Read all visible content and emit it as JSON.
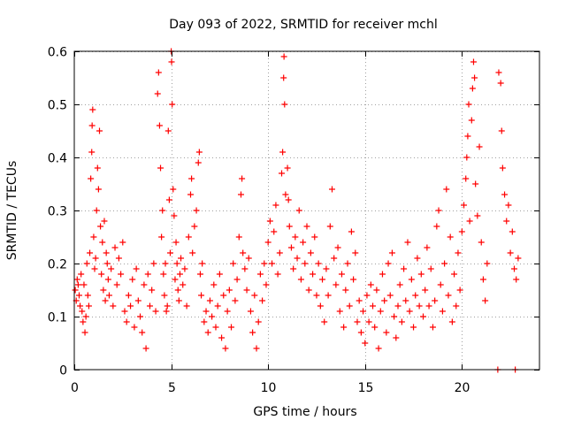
{
  "chart_data": {
    "type": "scatter",
    "title": "Day 093 of 2022, SRMTID for receiver mchl",
    "xlabel": "GPS time / hours",
    "ylabel": "SRMTID / TECUs",
    "xlim": [
      0,
      24
    ],
    "ylim": [
      0,
      0.6
    ],
    "x_ticks": [
      0,
      5,
      10,
      15,
      20
    ],
    "x_tick_labels": [
      "0",
      "5",
      "10",
      "15",
      "20"
    ],
    "y_ticks": [
      0,
      0.1,
      0.2,
      0.3,
      0.4,
      0.5,
      0.6
    ],
    "y_tick_labels": [
      "0",
      "0.1",
      "0.2",
      "0.3",
      "0.4",
      "0.5",
      "0.6"
    ],
    "grid": true,
    "marker": "plus",
    "series": [
      {
        "name": "SRMTID",
        "color": "#ff0000",
        "points": [
          [
            0.05,
            0.15
          ],
          [
            0.1,
            0.13
          ],
          [
            0.15,
            0.17
          ],
          [
            0.2,
            0.16
          ],
          [
            0.25,
            0.14
          ],
          [
            0.3,
            0.12
          ],
          [
            0.35,
            0.18
          ],
          [
            0.4,
            0.11
          ],
          [
            0.45,
            0.09
          ],
          [
            0.5,
            0.16
          ],
          [
            0.55,
            0.07
          ],
          [
            0.6,
            0.1
          ],
          [
            0.65,
            0.2
          ],
          [
            0.7,
            0.14
          ],
          [
            0.75,
            0.12
          ],
          [
            0.8,
            0.22
          ],
          [
            0.85,
            0.36
          ],
          [
            0.9,
            0.41
          ],
          [
            0.92,
            0.46
          ],
          [
            0.95,
            0.49
          ],
          [
            1.0,
            0.25
          ],
          [
            1.05,
            0.19
          ],
          [
            1.1,
            0.21
          ],
          [
            1.15,
            0.3
          ],
          [
            1.2,
            0.38
          ],
          [
            1.25,
            0.34
          ],
          [
            1.3,
            0.45
          ],
          [
            1.35,
            0.27
          ],
          [
            1.4,
            0.18
          ],
          [
            1.45,
            0.24
          ],
          [
            1.5,
            0.15
          ],
          [
            1.55,
            0.28
          ],
          [
            1.6,
            0.13
          ],
          [
            1.65,
            0.22
          ],
          [
            1.7,
            0.2
          ],
          [
            1.75,
            0.17
          ],
          [
            1.8,
            0.14
          ],
          [
            1.9,
            0.19
          ],
          [
            2.0,
            0.12
          ],
          [
            2.1,
            0.23
          ],
          [
            2.2,
            0.16
          ],
          [
            2.3,
            0.21
          ],
          [
            2.4,
            0.18
          ],
          [
            2.5,
            0.24
          ],
          [
            2.6,
            0.11
          ],
          [
            2.7,
            0.09
          ],
          [
            2.8,
            0.14
          ],
          [
            2.9,
            0.12
          ],
          [
            3.0,
            0.17
          ],
          [
            3.1,
            0.08
          ],
          [
            3.2,
            0.19
          ],
          [
            3.3,
            0.13
          ],
          [
            3.4,
            0.1
          ],
          [
            3.5,
            0.07
          ],
          [
            3.6,
            0.16
          ],
          [
            3.7,
            0.04
          ],
          [
            3.8,
            0.18
          ],
          [
            3.9,
            0.12
          ],
          [
            4.0,
            0.15
          ],
          [
            4.1,
            0.2
          ],
          [
            4.2,
            0.11
          ],
          [
            4.3,
            0.52
          ],
          [
            4.35,
            0.56
          ],
          [
            4.4,
            0.46
          ],
          [
            4.45,
            0.38
          ],
          [
            4.5,
            0.25
          ],
          [
            4.55,
            0.3
          ],
          [
            4.6,
            0.18
          ],
          [
            4.65,
            0.14
          ],
          [
            4.7,
            0.2
          ],
          [
            4.75,
            0.11
          ],
          [
            4.8,
            0.12
          ],
          [
            4.85,
            0.45
          ],
          [
            4.9,
            0.32
          ],
          [
            4.95,
            0.22
          ],
          [
            5.0,
            0.6
          ],
          [
            5.02,
            0.58
          ],
          [
            5.05,
            0.5
          ],
          [
            5.1,
            0.34
          ],
          [
            5.15,
            0.29
          ],
          [
            5.2,
            0.17
          ],
          [
            5.25,
            0.24
          ],
          [
            5.3,
            0.2
          ],
          [
            5.35,
            0.15
          ],
          [
            5.4,
            0.13
          ],
          [
            5.45,
            0.18
          ],
          [
            5.5,
            0.21
          ],
          [
            5.6,
            0.16
          ],
          [
            5.7,
            0.19
          ],
          [
            5.8,
            0.12
          ],
          [
            5.9,
            0.25
          ],
          [
            6.0,
            0.33
          ],
          [
            6.05,
            0.36
          ],
          [
            6.1,
            0.22
          ],
          [
            6.2,
            0.27
          ],
          [
            6.3,
            0.3
          ],
          [
            6.4,
            0.39
          ],
          [
            6.45,
            0.41
          ],
          [
            6.5,
            0.18
          ],
          [
            6.55,
            0.14
          ],
          [
            6.6,
            0.2
          ],
          [
            6.7,
            0.09
          ],
          [
            6.8,
            0.11
          ],
          [
            6.9,
            0.07
          ],
          [
            7.0,
            0.13
          ],
          [
            7.1,
            0.1
          ],
          [
            7.2,
            0.16
          ],
          [
            7.3,
            0.08
          ],
          [
            7.4,
            0.12
          ],
          [
            7.5,
            0.18
          ],
          [
            7.6,
            0.06
          ],
          [
            7.7,
            0.14
          ],
          [
            7.8,
            0.04
          ],
          [
            7.9,
            0.11
          ],
          [
            8.0,
            0.15
          ],
          [
            8.1,
            0.08
          ],
          [
            8.2,
            0.2
          ],
          [
            8.3,
            0.13
          ],
          [
            8.4,
            0.17
          ],
          [
            8.5,
            0.25
          ],
          [
            8.6,
            0.33
          ],
          [
            8.65,
            0.36
          ],
          [
            8.7,
            0.22
          ],
          [
            8.8,
            0.19
          ],
          [
            8.9,
            0.15
          ],
          [
            9.0,
            0.21
          ],
          [
            9.1,
            0.11
          ],
          [
            9.2,
            0.07
          ],
          [
            9.3,
            0.14
          ],
          [
            9.4,
            0.04
          ],
          [
            9.5,
            0.09
          ],
          [
            9.6,
            0.18
          ],
          [
            9.7,
            0.13
          ],
          [
            9.8,
            0.2
          ],
          [
            9.9,
            0.16
          ],
          [
            10.0,
            0.24
          ],
          [
            10.1,
            0.28
          ],
          [
            10.2,
            0.2
          ],
          [
            10.3,
            0.26
          ],
          [
            10.4,
            0.31
          ],
          [
            10.5,
            0.18
          ],
          [
            10.6,
            0.22
          ],
          [
            10.7,
            0.37
          ],
          [
            10.75,
            0.41
          ],
          [
            10.8,
            0.55
          ],
          [
            10.82,
            0.59
          ],
          [
            10.85,
            0.5
          ],
          [
            10.9,
            0.33
          ],
          [
            11.0,
            0.38
          ],
          [
            11.05,
            0.32
          ],
          [
            11.1,
            0.27
          ],
          [
            11.2,
            0.23
          ],
          [
            11.3,
            0.19
          ],
          [
            11.4,
            0.25
          ],
          [
            11.5,
            0.21
          ],
          [
            11.6,
            0.3
          ],
          [
            11.7,
            0.17
          ],
          [
            11.8,
            0.24
          ],
          [
            11.9,
            0.2
          ],
          [
            12.0,
            0.27
          ],
          [
            12.1,
            0.15
          ],
          [
            12.2,
            0.22
          ],
          [
            12.3,
            0.18
          ],
          [
            12.4,
            0.25
          ],
          [
            12.5,
            0.14
          ],
          [
            12.6,
            0.2
          ],
          [
            12.7,
            0.12
          ],
          [
            12.8,
            0.17
          ],
          [
            12.9,
            0.09
          ],
          [
            13.0,
            0.19
          ],
          [
            13.1,
            0.14
          ],
          [
            13.2,
            0.27
          ],
          [
            13.3,
            0.34
          ],
          [
            13.4,
            0.21
          ],
          [
            13.5,
            0.16
          ],
          [
            13.6,
            0.23
          ],
          [
            13.7,
            0.11
          ],
          [
            13.8,
            0.18
          ],
          [
            13.9,
            0.08
          ],
          [
            14.0,
            0.15
          ],
          [
            14.1,
            0.2
          ],
          [
            14.2,
            0.12
          ],
          [
            14.3,
            0.26
          ],
          [
            14.4,
            0.17
          ],
          [
            14.5,
            0.22
          ],
          [
            14.6,
            0.09
          ],
          [
            14.7,
            0.13
          ],
          [
            14.8,
            0.07
          ],
          [
            14.9,
            0.11
          ],
          [
            15.0,
            0.05
          ],
          [
            15.1,
            0.14
          ],
          [
            15.2,
            0.09
          ],
          [
            15.3,
            0.16
          ],
          [
            15.4,
            0.12
          ],
          [
            15.5,
            0.08
          ],
          [
            15.6,
            0.15
          ],
          [
            15.7,
            0.04
          ],
          [
            15.8,
            0.11
          ],
          [
            15.9,
            0.18
          ],
          [
            16.0,
            0.13
          ],
          [
            16.1,
            0.07
          ],
          [
            16.2,
            0.2
          ],
          [
            16.3,
            0.14
          ],
          [
            16.4,
            0.22
          ],
          [
            16.5,
            0.1
          ],
          [
            16.6,
            0.06
          ],
          [
            16.7,
            0.12
          ],
          [
            16.8,
            0.16
          ],
          [
            16.9,
            0.09
          ],
          [
            17.0,
            0.19
          ],
          [
            17.1,
            0.13
          ],
          [
            17.2,
            0.24
          ],
          [
            17.3,
            0.11
          ],
          [
            17.4,
            0.17
          ],
          [
            17.5,
            0.08
          ],
          [
            17.6,
            0.14
          ],
          [
            17.7,
            0.21
          ],
          [
            17.8,
            0.12
          ],
          [
            17.9,
            0.18
          ],
          [
            18.0,
            0.1
          ],
          [
            18.1,
            0.15
          ],
          [
            18.2,
            0.23
          ],
          [
            18.3,
            0.12
          ],
          [
            18.4,
            0.19
          ],
          [
            18.5,
            0.08
          ],
          [
            18.6,
            0.13
          ],
          [
            18.7,
            0.27
          ],
          [
            18.8,
            0.3
          ],
          [
            18.9,
            0.16
          ],
          [
            19.0,
            0.11
          ],
          [
            19.1,
            0.2
          ],
          [
            19.2,
            0.34
          ],
          [
            19.3,
            0.14
          ],
          [
            19.4,
            0.25
          ],
          [
            19.5,
            0.09
          ],
          [
            19.6,
            0.18
          ],
          [
            19.7,
            0.12
          ],
          [
            19.8,
            0.22
          ],
          [
            19.9,
            0.15
          ],
          [
            20.0,
            0.26
          ],
          [
            20.1,
            0.31
          ],
          [
            20.2,
            0.36
          ],
          [
            20.25,
            0.4
          ],
          [
            20.3,
            0.44
          ],
          [
            20.35,
            0.5
          ],
          [
            20.4,
            0.28
          ],
          [
            20.5,
            0.47
          ],
          [
            20.55,
            0.53
          ],
          [
            20.6,
            0.58
          ],
          [
            20.65,
            0.55
          ],
          [
            20.7,
            0.35
          ],
          [
            20.8,
            0.29
          ],
          [
            20.9,
            0.42
          ],
          [
            21.0,
            0.24
          ],
          [
            21.1,
            0.17
          ],
          [
            21.2,
            0.13
          ],
          [
            21.3,
            0.2
          ],
          [
            21.9,
            0.56
          ],
          [
            22.0,
            0.54
          ],
          [
            22.05,
            0.45
          ],
          [
            22.1,
            0.38
          ],
          [
            22.2,
            0.33
          ],
          [
            22.3,
            0.28
          ],
          [
            22.4,
            0.31
          ],
          [
            22.5,
            0.22
          ],
          [
            22.6,
            0.26
          ],
          [
            22.7,
            0.19
          ],
          [
            22.8,
            0.17
          ],
          [
            22.9,
            0.21
          ],
          [
            21.85,
            0.0
          ],
          [
            22.75,
            0.0
          ]
        ]
      }
    ]
  }
}
